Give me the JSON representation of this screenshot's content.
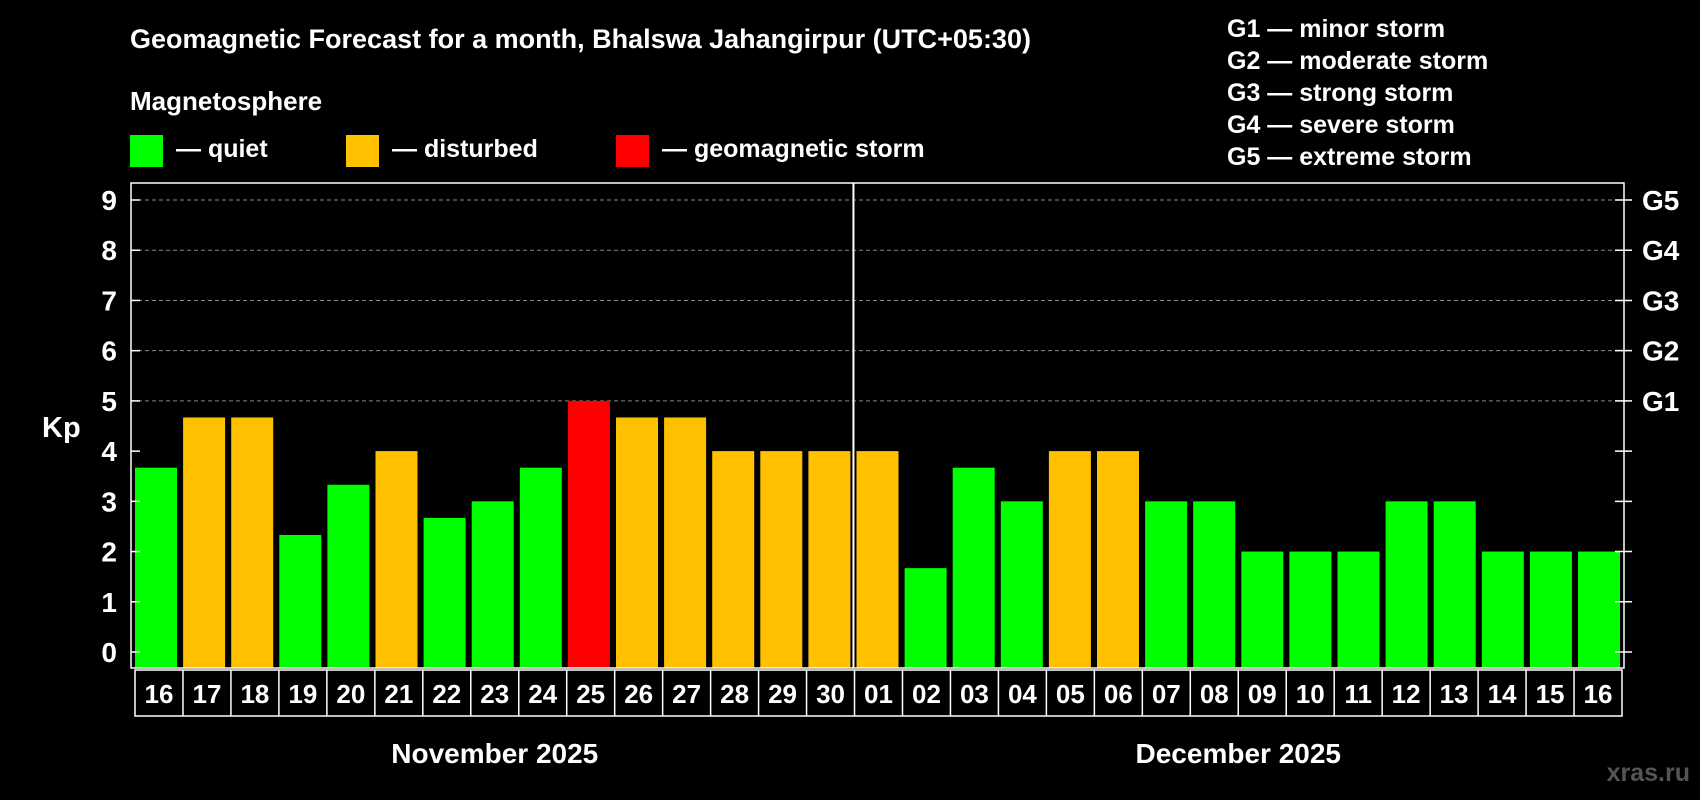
{
  "chart_data": {
    "type": "bar",
    "title": "Geomagnetic Forecast for a month, Bhalswa Jahangirpur (UTC+05:30)",
    "ylabel": "Kp",
    "ylim": [
      0,
      9
    ],
    "yticks": [
      "0",
      "1",
      "2",
      "3",
      "4",
      "5",
      "6",
      "7",
      "8",
      "9"
    ],
    "storm_ticks": [
      {
        "kp": 5,
        "label": "G1"
      },
      {
        "kp": 6,
        "label": "G2"
      },
      {
        "kp": 7,
        "label": "G3"
      },
      {
        "kp": 8,
        "label": "G4"
      },
      {
        "kp": 9,
        "label": "G5"
      }
    ],
    "legend_title": "Magnetosphere",
    "legend": [
      {
        "key": "quiet",
        "label": "— quiet",
        "color": "#00ff00"
      },
      {
        "key": "disturbed",
        "label": "— disturbed",
        "color": "#ffc000"
      },
      {
        "key": "storm",
        "label": "— geomagnetic storm",
        "color": "#ff0000"
      }
    ],
    "storm_scale": [
      "G1 — minor storm",
      "G2 — moderate storm",
      "G3 — strong storm",
      "G4 — severe storm",
      "G5 — extreme storm"
    ],
    "months": [
      {
        "label": "November 2025",
        "from": 0,
        "to": 14
      },
      {
        "label": "December 2025",
        "from": 15,
        "to": 30
      }
    ],
    "month_divider_after": 14,
    "categories": [
      "16",
      "17",
      "18",
      "19",
      "20",
      "21",
      "22",
      "23",
      "24",
      "25",
      "26",
      "27",
      "28",
      "29",
      "30",
      "01",
      "02",
      "03",
      "04",
      "05",
      "06",
      "07",
      "08",
      "09",
      "10",
      "11",
      "12",
      "13",
      "14",
      "15",
      "16"
    ],
    "values": [
      3.67,
      4.67,
      4.67,
      2.33,
      3.33,
      4.0,
      2.67,
      3.0,
      3.67,
      5.0,
      4.67,
      4.67,
      4.0,
      4.0,
      4.0,
      4.0,
      1.67,
      3.67,
      3.0,
      4.0,
      4.0,
      3.0,
      3.0,
      2.0,
      2.0,
      2.0,
      3.0,
      3.0,
      2.0,
      2.0,
      2.0
    ],
    "levels": [
      "quiet",
      "disturbed",
      "disturbed",
      "quiet",
      "quiet",
      "disturbed",
      "quiet",
      "quiet",
      "quiet",
      "storm",
      "disturbed",
      "disturbed",
      "disturbed",
      "disturbed",
      "disturbed",
      "disturbed",
      "quiet",
      "quiet",
      "quiet",
      "disturbed",
      "disturbed",
      "quiet",
      "quiet",
      "quiet",
      "quiet",
      "quiet",
      "quiet",
      "quiet",
      "quiet",
      "quiet",
      "quiet"
    ]
  },
  "watermark": "xras.ru"
}
